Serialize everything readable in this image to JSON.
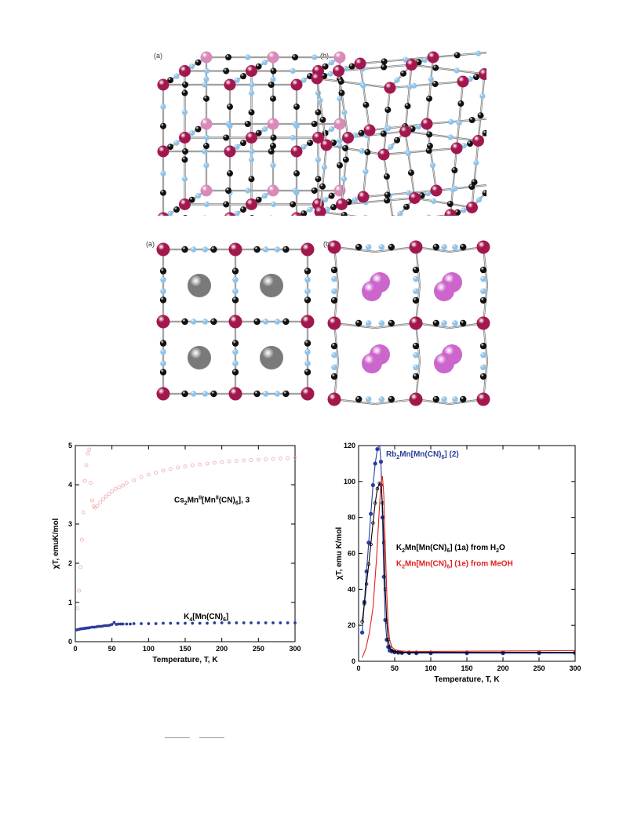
{
  "figures": {
    "cubes": {
      "label_a": "(a)",
      "label_b": "(b)"
    },
    "planes": {
      "label_a": "(a)",
      "label_b": "(b)"
    }
  },
  "colors": {
    "mn_atom": "#a3174f",
    "carbon_atom": "#111111",
    "nitrogen_atom": "#8fc3ea",
    "cs_cation": "#7a7a7a",
    "rb_cation": "#cc66cc",
    "k4_series": "#2a3d9c",
    "cs_series": "#f0a9a9",
    "rb_series": "#2a3d9c",
    "k_h2o_series": "#000000",
    "k_meoh_series": "#e02020"
  },
  "chart_data": [
    {
      "type": "scatter",
      "title": "",
      "xlabel": "Temperature, T, K",
      "ylabel": "χT, emuK/mol",
      "xlim": [
        0,
        300
      ],
      "ylim": [
        0,
        5
      ],
      "xticks": [
        "0",
        "50",
        "100",
        "150",
        "200",
        "250",
        "300"
      ],
      "yticks": [
        "0",
        "1",
        "2",
        "3",
        "4",
        "5"
      ],
      "series": [
        {
          "name": "Cs2MnII[MnII(CN)6], 3",
          "label_parts": [
            "Cs",
            "2",
            "Mn",
            "II",
            "[Mn",
            "II",
            "(CN)",
            "6",
            "], 3"
          ],
          "color": "#f0a9a9",
          "x": [
            3,
            5,
            7,
            9,
            11,
            13,
            15,
            17,
            19,
            21,
            23,
            25,
            27,
            30,
            34,
            38,
            42,
            46,
            50,
            55,
            60,
            65,
            70,
            80,
            90,
            100,
            110,
            120,
            130,
            140,
            150,
            160,
            170,
            180,
            190,
            200,
            210,
            220,
            230,
            240,
            250,
            260,
            270,
            280,
            290,
            300
          ],
          "y": [
            0.85,
            1.3,
            1.9,
            2.6,
            3.3,
            4.1,
            4.5,
            4.8,
            4.9,
            4.05,
            3.6,
            3.45,
            3.42,
            3.46,
            3.55,
            3.63,
            3.7,
            3.77,
            3.83,
            3.89,
            3.94,
            3.98,
            4.05,
            4.12,
            4.2,
            4.26,
            4.31,
            4.36,
            4.4,
            4.44,
            4.47,
            4.5,
            4.52,
            4.54,
            4.56,
            4.58,
            4.6,
            4.61,
            4.62,
            4.63,
            4.64,
            4.65,
            4.66,
            4.67,
            4.68,
            4.69
          ]
        },
        {
          "name": "K4[Mn(CN)6]",
          "label_parts": [
            "K",
            "4",
            "[Mn(CN)",
            "6",
            "]"
          ],
          "color": "#2a3d9c",
          "x": [
            2,
            4,
            6,
            8,
            10,
            12,
            14,
            16,
            18,
            20,
            23,
            26,
            29,
            32,
            35,
            38,
            41,
            44,
            47,
            50,
            53,
            56,
            59,
            62,
            65,
            70,
            75,
            80,
            90,
            100,
            110,
            120,
            130,
            140,
            150,
            160,
            170,
            180,
            190,
            200,
            210,
            220,
            230,
            240,
            250,
            260,
            270,
            280,
            290,
            300
          ],
          "y": [
            0.3,
            0.31,
            0.32,
            0.33,
            0.33,
            0.34,
            0.34,
            0.35,
            0.35,
            0.36,
            0.37,
            0.37,
            0.38,
            0.39,
            0.39,
            0.4,
            0.41,
            0.41,
            0.42,
            0.44,
            0.49,
            0.44,
            0.45,
            0.45,
            0.45,
            0.45,
            0.45,
            0.46,
            0.46,
            0.46,
            0.46,
            0.47,
            0.47,
            0.47,
            0.47,
            0.47,
            0.47,
            0.47,
            0.48,
            0.48,
            0.48,
            0.48,
            0.48,
            0.48,
            0.48,
            0.48,
            0.48,
            0.48,
            0.48,
            0.48
          ]
        }
      ]
    },
    {
      "type": "line",
      "title": "",
      "xlabel": "Temperature, T, K",
      "ylabel": "χT, emu K/mol",
      "xlim": [
        0,
        300
      ],
      "ylim": [
        0,
        120
      ],
      "xticks": [
        "0",
        "50",
        "100",
        "150",
        "200",
        "250",
        "300"
      ],
      "yticks": [
        "0",
        "20",
        "40",
        "60",
        "80",
        "100",
        "120"
      ],
      "series": [
        {
          "name": "Rb2Mn[Mn(CN)6] (2)",
          "label_parts": [
            "Rb",
            "2",
            "Mn[Mn(CN)",
            "6",
            "] (2)"
          ],
          "color": "#2a3d9c",
          "x": [
            5,
            8,
            11,
            14,
            17,
            20,
            23,
            26,
            29,
            31,
            33,
            35,
            37,
            39,
            41,
            43,
            46,
            50,
            55,
            60,
            70,
            80,
            100,
            150,
            200,
            250,
            300
          ],
          "y": [
            16,
            33,
            50,
            66,
            82,
            98,
            110,
            118,
            121,
            111,
            80,
            47,
            23,
            12,
            8,
            6,
            5.5,
            5,
            4.8,
            4.7,
            4.6,
            4.5,
            4.5,
            4.5,
            4.5,
            4.5,
            4.5
          ]
        },
        {
          "name": "K2Mn[Mn(CN)6] (1a) from H2O",
          "label_parts": [
            "K",
            "2",
            "Mn[Mn(CN)",
            "6",
            "] (1a) from H",
            "2",
            "O"
          ],
          "color": "#000000",
          "x": [
            5,
            8,
            11,
            14,
            17,
            20,
            23,
            26,
            29,
            31,
            33,
            35,
            37,
            39,
            41,
            43,
            46,
            50,
            55,
            60,
            70,
            80,
            100,
            150,
            200,
            250,
            300
          ],
          "y": [
            22,
            32,
            43,
            54,
            65,
            77,
            88,
            96,
            99,
            98,
            88,
            66,
            40,
            22,
            12,
            8,
            6,
            5.5,
            5.2,
            5,
            5,
            5,
            5,
            5,
            5,
            5,
            5
          ]
        },
        {
          "name": "K2Mn[Mn(CN)6] (1e) from MeOH",
          "label_parts": [
            "K",
            "2",
            "Mn[Mn(CN)",
            "6",
            "] (1e) from MeOH"
          ],
          "color": "#e02020",
          "x": [
            5,
            10,
            15,
            20,
            25,
            28,
            31,
            33,
            35,
            37,
            39,
            41,
            43,
            46,
            50,
            55,
            60,
            70,
            80,
            100,
            150,
            200,
            250,
            300
          ],
          "y": [
            2,
            7,
            16,
            30,
            58,
            80,
            99,
            103,
            92,
            64,
            38,
            20,
            12,
            8,
            6.5,
            6,
            5.7,
            5.5,
            5.5,
            5.5,
            5.6,
            5.7,
            5.8,
            6
          ]
        }
      ]
    }
  ]
}
